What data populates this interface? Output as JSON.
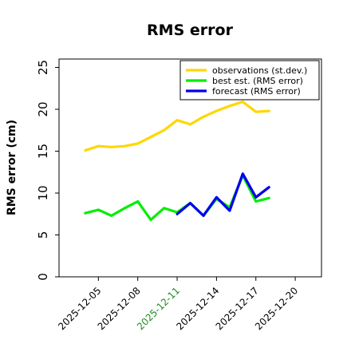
{
  "chart_data": {
    "type": "line",
    "title": "RMS error",
    "xlabel": "",
    "ylabel": "RMS error (cm)",
    "ylim": [
      0,
      26
    ],
    "xlim": [
      "2025-12-02",
      "2025-12-22"
    ],
    "yticks": [
      0,
      5,
      10,
      15,
      20,
      25
    ],
    "xticks": [
      {
        "date": "2025-12-05",
        "label": "2025-12-05",
        "color": "#000000"
      },
      {
        "date": "2025-12-08",
        "label": "2025-12-08",
        "color": "#000000"
      },
      {
        "date": "2025-12-11",
        "label": "2025-12-11",
        "color": "#228b22"
      },
      {
        "date": "2025-12-14",
        "label": "2025-12-14",
        "color": "#000000"
      },
      {
        "date": "2025-12-17",
        "label": "2025-12-17",
        "color": "#000000"
      },
      {
        "date": "2025-12-20",
        "label": "2025-12-20",
        "color": "#000000"
      }
    ],
    "legend_position": "top-right",
    "grid": false,
    "series": [
      {
        "name": "observations (st.dev.)",
        "color": "#ffd700",
        "points": [
          {
            "x": "2025-12-04",
            "y": 15.1
          },
          {
            "x": "2025-12-05",
            "y": 15.6
          },
          {
            "x": "2025-12-06",
            "y": 15.5
          },
          {
            "x": "2025-12-07",
            "y": 15.6
          },
          {
            "x": "2025-12-08",
            "y": 15.9
          },
          {
            "x": "2025-12-09",
            "y": 16.7
          },
          {
            "x": "2025-12-10",
            "y": 17.5
          },
          {
            "x": "2025-12-11",
            "y": 18.7
          },
          {
            "x": "2025-12-12",
            "y": 18.2
          },
          {
            "x": "2025-12-13",
            "y": 19.1
          },
          {
            "x": "2025-12-14",
            "y": 19.8
          },
          {
            "x": "2025-12-15",
            "y": 20.4
          },
          {
            "x": "2025-12-16",
            "y": 20.9
          },
          {
            "x": "2025-12-17",
            "y": 19.7
          },
          {
            "x": "2025-12-18",
            "y": 19.8
          }
        ]
      },
      {
        "name": "best est. (RMS error)",
        "color": "#00ee00",
        "points": [
          {
            "x": "2025-12-04",
            "y": 7.6
          },
          {
            "x": "2025-12-05",
            "y": 8.0
          },
          {
            "x": "2025-12-06",
            "y": 7.3
          },
          {
            "x": "2025-12-07",
            "y": 8.2
          },
          {
            "x": "2025-12-08",
            "y": 9.0
          },
          {
            "x": "2025-12-09",
            "y": 6.8
          },
          {
            "x": "2025-12-10",
            "y": 8.2
          },
          {
            "x": "2025-12-11",
            "y": 7.7
          },
          {
            "x": "2025-12-12",
            "y": 8.8
          },
          {
            "x": "2025-12-13",
            "y": 7.3
          },
          {
            "x": "2025-12-14",
            "y": 9.3
          },
          {
            "x": "2025-12-15",
            "y": 8.3
          },
          {
            "x": "2025-12-16",
            "y": 12.1
          },
          {
            "x": "2025-12-17",
            "y": 9.0
          },
          {
            "x": "2025-12-18",
            "y": 9.4
          }
        ]
      },
      {
        "name": "forecast (RMS error)",
        "color": "#0000ee",
        "points": [
          {
            "x": "2025-12-11",
            "y": 7.5
          },
          {
            "x": "2025-12-12",
            "y": 8.8
          },
          {
            "x": "2025-12-13",
            "y": 7.3
          },
          {
            "x": "2025-12-14",
            "y": 9.5
          },
          {
            "x": "2025-12-15",
            "y": 7.9
          },
          {
            "x": "2025-12-16",
            "y": 12.3
          },
          {
            "x": "2025-12-17",
            "y": 9.5
          },
          {
            "x": "2025-12-18",
            "y": 10.7
          }
        ]
      }
    ]
  }
}
